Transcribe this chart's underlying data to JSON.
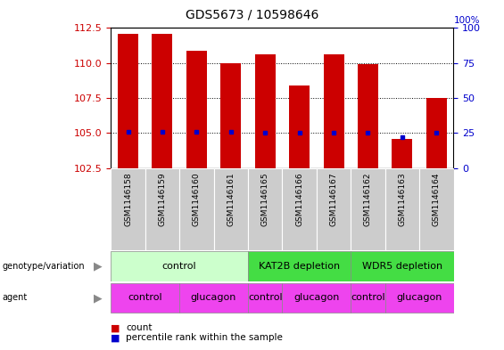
{
  "title": "GDS5673 / 10598646",
  "samples": [
    "GSM1146158",
    "GSM1146159",
    "GSM1146160",
    "GSM1146161",
    "GSM1146165",
    "GSM1146166",
    "GSM1146167",
    "GSM1146162",
    "GSM1146163",
    "GSM1146164"
  ],
  "bar_heights": [
    112.1,
    112.1,
    110.9,
    110.0,
    110.6,
    108.4,
    110.6,
    109.9,
    104.6,
    107.5
  ],
  "bar_base": 102.5,
  "percentile_values": [
    26,
    26,
    26,
    26,
    25,
    25,
    25,
    25,
    22,
    25
  ],
  "ylim_left": [
    102.5,
    112.5
  ],
  "yticks_left": [
    102.5,
    105.0,
    107.5,
    110.0,
    112.5
  ],
  "yticks_right": [
    0,
    25,
    50,
    75,
    100
  ],
  "bar_color": "#cc0000",
  "dot_color": "#0000cc",
  "background_color": "#ffffff",
  "genotype_groups": [
    {
      "label": "control",
      "start": 0,
      "end": 4,
      "color": "#ccffcc"
    },
    {
      "label": "KAT2B depletion",
      "start": 4,
      "end": 7,
      "color": "#44dd44"
    },
    {
      "label": "WDR5 depletion",
      "start": 7,
      "end": 10,
      "color": "#44dd44"
    }
  ],
  "agent_groups": [
    {
      "label": "control",
      "start": 0,
      "end": 2,
      "color": "#ee44ee"
    },
    {
      "label": "glucagon",
      "start": 2,
      "end": 4,
      "color": "#ee44ee"
    },
    {
      "label": "control",
      "start": 4,
      "end": 5,
      "color": "#ee44ee"
    },
    {
      "label": "glucagon",
      "start": 5,
      "end": 7,
      "color": "#ee44ee"
    },
    {
      "label": "control",
      "start": 7,
      "end": 8,
      "color": "#ee44ee"
    },
    {
      "label": "glucagon",
      "start": 8,
      "end": 10,
      "color": "#ee44ee"
    }
  ],
  "sample_bg_color": "#cccccc",
  "tick_label_color_left": "#cc0000",
  "tick_label_color_right": "#0000cc",
  "grid_color": "#000000",
  "legend_count_color": "#cc0000",
  "legend_percentile_color": "#0000cc"
}
